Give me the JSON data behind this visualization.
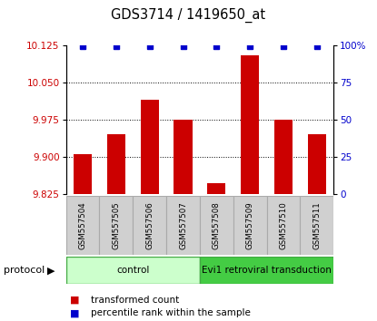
{
  "title": "GDS3714 / 1419650_at",
  "samples": [
    "GSM557504",
    "GSM557505",
    "GSM557506",
    "GSM557507",
    "GSM557508",
    "GSM557509",
    "GSM557510",
    "GSM557511"
  ],
  "transformed_counts": [
    9.905,
    9.945,
    10.015,
    9.975,
    9.848,
    10.105,
    9.975,
    9.945
  ],
  "percentile_ranks": [
    99,
    99,
    99,
    99,
    99,
    99,
    99,
    99
  ],
  "ylim_left": [
    9.825,
    10.125
  ],
  "ylim_right": [
    0,
    100
  ],
  "yticks_left": [
    9.825,
    9.9,
    9.975,
    10.05,
    10.125
  ],
  "yticks_right": [
    0,
    25,
    50,
    75,
    100
  ],
  "ytick_labels_right": [
    "0",
    "25",
    "50",
    "75",
    "100%"
  ],
  "grid_values": [
    9.9,
    9.975,
    10.05
  ],
  "bar_color": "#cc0000",
  "dot_color": "#0000cc",
  "bar_bottom": 9.825,
  "groups": [
    {
      "label": "control",
      "samples": [
        0,
        1,
        2,
        3
      ],
      "color_light": "#ccffcc",
      "color_border": "#44aa44"
    },
    {
      "label": "Evi1 retroviral transduction",
      "samples": [
        4,
        5,
        6,
        7
      ],
      "color_light": "#44cc44",
      "color_border": "#44aa44"
    }
  ],
  "protocol_label": "protocol",
  "legend": [
    {
      "label": "transformed count",
      "color": "#cc0000"
    },
    {
      "label": "percentile rank within the sample",
      "color": "#0000cc"
    }
  ],
  "bg_color": "#ffffff",
  "tick_label_color_left": "#cc0000",
  "tick_label_color_right": "#0000cc",
  "sample_box_color": "#d0d0d0",
  "sample_box_edge": "#aaaaaa"
}
